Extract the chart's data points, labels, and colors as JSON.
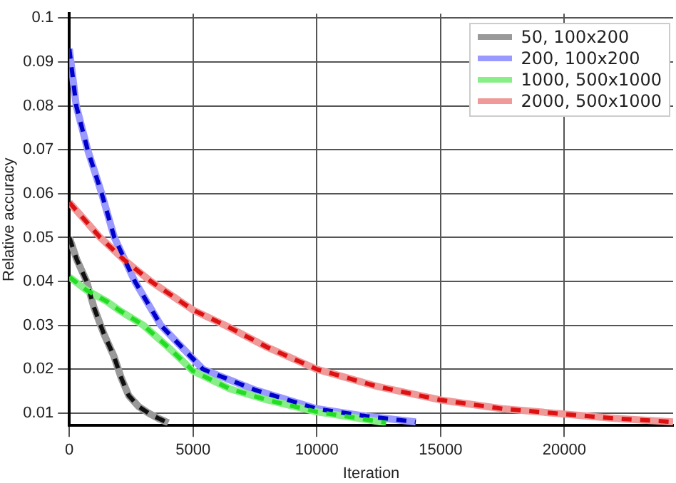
{
  "chart_data": {
    "type": "line",
    "xlabel": "Iteration",
    "ylabel": "Relative accuracy",
    "xlim": [
      0,
      24400
    ],
    "xticks": [
      0,
      5000,
      10000,
      15000,
      20000
    ],
    "ylim": [
      0.0072,
      0.101
    ],
    "yticks": [
      0.01,
      0.02,
      0.03,
      0.04,
      0.05,
      0.06,
      0.07,
      0.08,
      0.09,
      0.1
    ],
    "grid": true,
    "legend": "top right",
    "marker": "none",
    "series": [
      {
        "name": "50, 100x200",
        "color": "#999999",
        "x": [
          0,
          300,
          700,
          1000,
          1400,
          1800,
          2100,
          2400,
          2800,
          3200,
          3600,
          4000
        ],
        "values": [
          0.05,
          0.045,
          0.04,
          0.034,
          0.028,
          0.023,
          0.018,
          0.014,
          0.0115,
          0.01,
          0.0088,
          0.0078
        ]
      },
      {
        "name": "200, 100x200",
        "color": "#9999ff",
        "x": [
          0,
          280,
          740,
          1310,
          1820,
          2650,
          3700,
          5400,
          7500,
          10000,
          12000,
          14000
        ],
        "values": [
          0.093,
          0.08,
          0.07,
          0.06,
          0.05,
          0.04,
          0.03,
          0.02,
          0.0153,
          0.011,
          0.0093,
          0.008
        ]
      },
      {
        "name": "1000, 500x1000",
        "color": "#88ee88",
        "x": [
          0,
          700,
          1500,
          2000,
          3000,
          4000,
          5000,
          6500,
          8000,
          10000,
          11500,
          12800
        ],
        "values": [
          0.041,
          0.038,
          0.0355,
          0.0335,
          0.03,
          0.025,
          0.0196,
          0.0155,
          0.013,
          0.0103,
          0.009,
          0.0078
        ]
      },
      {
        "name": "2000, 500x1000",
        "color": "#f09999",
        "x": [
          0,
          1250,
          2200,
          3300,
          5000,
          6300,
          8000,
          10000,
          12500,
          15000,
          17500,
          20000,
          22000,
          24400
        ],
        "values": [
          0.058,
          0.05,
          0.045,
          0.04,
          0.0335,
          0.03,
          0.025,
          0.02,
          0.016,
          0.013,
          0.011,
          0.0098,
          0.0088,
          0.008
        ]
      },
      {
        "color": "#111111",
        "line_style": "dashed",
        "x": [
          0,
          300,
          700,
          1000,
          1400,
          1800,
          2100,
          2400,
          2800,
          3200,
          3600,
          4000
        ],
        "values": [
          0.05,
          0.045,
          0.04,
          0.034,
          0.028,
          0.023,
          0.018,
          0.014,
          0.0115,
          0.01,
          0.0088,
          0.0078
        ]
      },
      {
        "color": "#0000cc",
        "line_style": "dashed",
        "x": [
          0,
          280,
          740,
          1310,
          1820,
          2650,
          3700,
          5400,
          7500,
          10000,
          12000,
          14000
        ],
        "values": [
          0.093,
          0.08,
          0.07,
          0.06,
          0.05,
          0.04,
          0.03,
          0.02,
          0.0153,
          0.011,
          0.0093,
          0.008
        ]
      },
      {
        "color": "#22dd22",
        "line_style": "dashed",
        "x": [
          0,
          700,
          1500,
          2000,
          3000,
          4000,
          5000,
          6500,
          8000,
          10000,
          11500,
          12800
        ],
        "values": [
          0.041,
          0.038,
          0.0355,
          0.0335,
          0.03,
          0.025,
          0.0196,
          0.0155,
          0.013,
          0.0103,
          0.009,
          0.0078
        ]
      },
      {
        "color": "#dd1111",
        "line_style": "dashed",
        "x": [
          0,
          1250,
          2200,
          3300,
          5000,
          6300,
          8000,
          10000,
          12500,
          15000,
          17500,
          20000,
          22000,
          24400
        ],
        "values": [
          0.058,
          0.05,
          0.045,
          0.04,
          0.0335,
          0.03,
          0.025,
          0.02,
          0.016,
          0.013,
          0.011,
          0.0098,
          0.0088,
          0.008
        ]
      }
    ]
  }
}
